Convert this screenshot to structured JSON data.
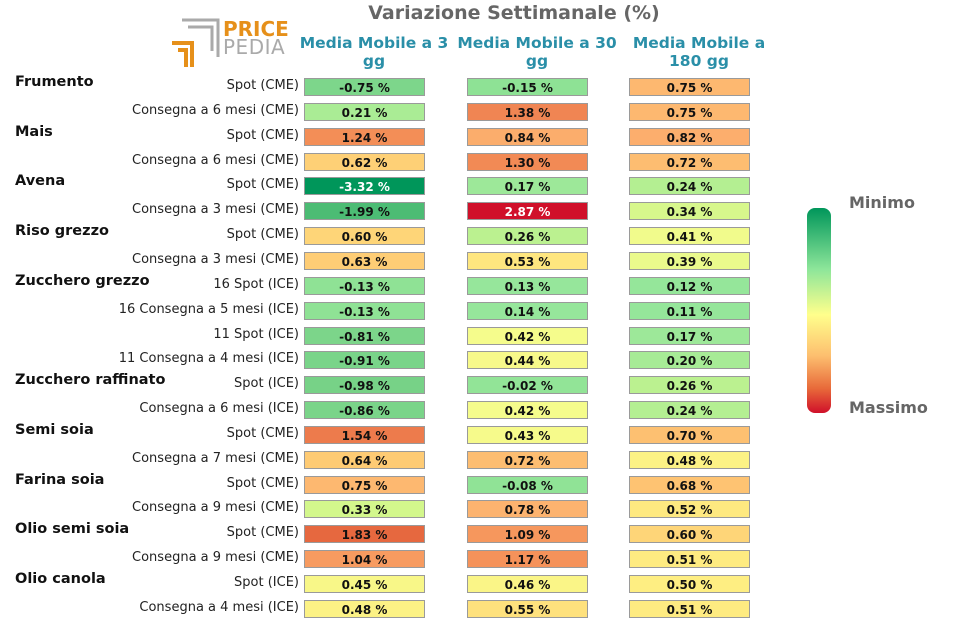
{
  "chart_data": {
    "type": "heatmap",
    "title": "Variazione Settimanale (%)",
    "columns": [
      "Media Mobile a 3 gg",
      "Media Mobile a 30 gg",
      "Media Mobile a 180 gg"
    ],
    "colorbar": {
      "min_label": "Minimo",
      "max_label": "Massimo"
    },
    "groups": [
      {
        "name": "Frumento",
        "rows": [
          {
            "label": "Spot (CME)",
            "values": [
              -0.75,
              -0.15,
              0.75
            ]
          },
          {
            "label": "Consegna a 6 mesi (CME)",
            "values": [
              0.21,
              1.38,
              0.75
            ]
          }
        ]
      },
      {
        "name": "Mais",
        "rows": [
          {
            "label": "Spot (CME)",
            "values": [
              1.24,
              0.84,
              0.82
            ]
          },
          {
            "label": "Consegna a 6 mesi (CME)",
            "values": [
              0.62,
              1.3,
              0.72
            ]
          }
        ]
      },
      {
        "name": "Avena",
        "rows": [
          {
            "label": "Spot (CME)",
            "values": [
              -3.32,
              0.17,
              0.24
            ]
          },
          {
            "label": "Consegna a 3 mesi (CME)",
            "values": [
              -1.99,
              2.87,
              0.34
            ]
          }
        ]
      },
      {
        "name": "Riso grezzo",
        "rows": [
          {
            "label": "Spot (CME)",
            "values": [
              0.6,
              0.26,
              0.41
            ]
          },
          {
            "label": "Consegna a 3 mesi (CME)",
            "values": [
              0.63,
              0.53,
              0.39
            ]
          }
        ]
      },
      {
        "name": "Zucchero grezzo",
        "rows": [
          {
            "label": "16 Spot (ICE)",
            "values": [
              -0.13,
              0.13,
              0.12
            ]
          },
          {
            "label": "16 Consegna a 5 mesi (ICE)",
            "values": [
              -0.13,
              0.14,
              0.11
            ]
          },
          {
            "label": "11 Spot (ICE)",
            "values": [
              -0.81,
              0.42,
              0.17
            ]
          },
          {
            "label": "11 Consegna a 4 mesi (ICE)",
            "values": [
              -0.91,
              0.44,
              0.2
            ]
          }
        ]
      },
      {
        "name": "Zucchero raffinato",
        "rows": [
          {
            "label": "Spot (ICE)",
            "values": [
              -0.98,
              -0.02,
              0.26
            ]
          },
          {
            "label": "Consegna a 6 mesi (ICE)",
            "values": [
              -0.86,
              0.42,
              0.24
            ]
          }
        ]
      },
      {
        "name": "Semi soia",
        "rows": [
          {
            "label": "Spot (CME)",
            "values": [
              1.54,
              0.43,
              0.7
            ]
          },
          {
            "label": "Consegna a 7 mesi (CME)",
            "values": [
              0.64,
              0.72,
              0.48
            ]
          }
        ]
      },
      {
        "name": "Farina soia",
        "rows": [
          {
            "label": "Spot (CME)",
            "values": [
              0.75,
              -0.08,
              0.68
            ]
          },
          {
            "label": "Consegna a 9 mesi (CME)",
            "values": [
              0.33,
              0.78,
              0.52
            ]
          }
        ]
      },
      {
        "name": "Olio semi soia",
        "rows": [
          {
            "label": "Spot (CME)",
            "values": [
              1.83,
              1.09,
              0.6
            ]
          },
          {
            "label": "Consegna a 9 mesi (CME)",
            "values": [
              1.04,
              1.17,
              0.51
            ]
          }
        ]
      },
      {
        "name": "Olio canola",
        "rows": [
          {
            "label": "Spot (ICE)",
            "values": [
              0.45,
              0.46,
              0.5
            ]
          },
          {
            "label": "Consegna a 4 mesi (ICE)",
            "values": [
              0.48,
              0.55,
              0.51
            ]
          }
        ]
      }
    ]
  },
  "logo": {
    "word1": "PRICE",
    "word2": "PEDIA"
  },
  "colors": {
    "min": "#00965a",
    "mid": "#ffff8c",
    "max": "#d0102a"
  }
}
